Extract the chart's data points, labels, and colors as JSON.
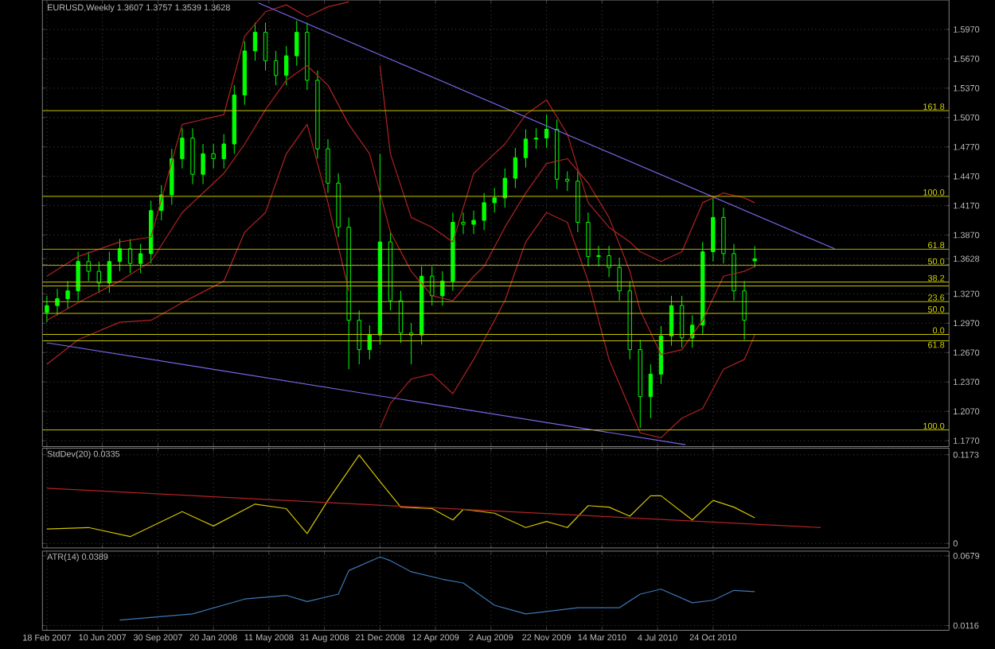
{
  "chart_data": [
    {
      "type": "candlestick",
      "title": "EURUSD,Weekly  1.3607 1.3757 1.3539 1.3628",
      "xlim": [
        "2007-02-09",
        "2012-02-12"
      ],
      "xticks": [
        {
          "value": "2007-02-18",
          "label": null
        },
        {
          "value": "2007-06-10",
          "label": null
        },
        {
          "value": "2007-09-30",
          "label": null
        },
        {
          "value": "2008-01-20",
          "label": null
        },
        {
          "value": "2008-05-11",
          "label": null
        },
        {
          "value": "2008-08-31",
          "label": null
        },
        {
          "value": "2008-12-21",
          "label": null
        },
        {
          "value": "2009-04-12",
          "label": null
        },
        {
          "value": "2009-08-02",
          "label": null
        },
        {
          "value": "2009-11-22",
          "label": null
        },
        {
          "value": "2010-03-14",
          "label": null
        },
        {
          "value": "2010-07-04",
          "label": null
        },
        {
          "value": "2010-10-24",
          "label": null
        }
      ],
      "ylim": [
        1.171,
        1.627
      ],
      "yticks": [
        {
          "value": 1.177,
          "label": "1.1770"
        },
        {
          "value": 1.207,
          "label": "1.2070"
        },
        {
          "value": 1.237,
          "label": "1.2370"
        },
        {
          "value": 1.267,
          "label": "1.2670"
        },
        {
          "value": 1.297,
          "label": "1.2970"
        },
        {
          "value": 1.327,
          "label": "1.3270"
        },
        {
          "value": 1.357,
          "label": null
        },
        {
          "value": 1.3628,
          "label": "1.3628"
        },
        {
          "value": 1.387,
          "label": "1.3870"
        },
        {
          "value": 1.417,
          "label": "1.4170"
        },
        {
          "value": 1.447,
          "label": "1.4470"
        },
        {
          "value": 1.477,
          "label": "1.4770"
        },
        {
          "value": 1.507,
          "label": "1.5070"
        },
        {
          "value": 1.537,
          "label": "1.5370"
        },
        {
          "value": 1.567,
          "label": "1.5670"
        },
        {
          "value": 1.597,
          "label": "1.5970"
        }
      ],
      "grid": true,
      "tick_labels": "y",
      "series": [
        {
          "type": "candlestick",
          "color": "#00ff00",
          "x": [
            "2007-02-18",
            "2007-03-11",
            "2007-04-01",
            "2007-04-22",
            "2007-05-13",
            "2007-06-03",
            "2007-06-24",
            "2007-07-15",
            "2007-08-05",
            "2007-08-26",
            "2007-09-16",
            "2007-10-07",
            "2007-10-28",
            "2007-11-18",
            "2007-12-09",
            "2007-12-30",
            "2008-01-20",
            "2008-02-10",
            "2008-03-02",
            "2008-03-23",
            "2008-04-13",
            "2008-05-04",
            "2008-05-25",
            "2008-06-15",
            "2008-07-06",
            "2008-07-27",
            "2008-08-17",
            "2008-09-07",
            "2008-09-28",
            "2008-10-19",
            "2008-11-09",
            "2008-11-30",
            "2008-12-21",
            "2009-01-11",
            "2009-02-01",
            "2009-02-22",
            "2009-03-15",
            "2009-04-05",
            "2009-04-26",
            "2009-05-17",
            "2009-06-07",
            "2009-06-28",
            "2009-07-19",
            "2009-08-09",
            "2009-08-30",
            "2009-09-20",
            "2009-10-11",
            "2009-11-01",
            "2009-11-22",
            "2009-12-13",
            "2010-01-03",
            "2010-01-24",
            "2010-02-14",
            "2010-03-07",
            "2010-03-28",
            "2010-04-18",
            "2010-05-09",
            "2010-05-30",
            "2010-06-20",
            "2010-07-11",
            "2010-08-01",
            "2010-08-22",
            "2010-09-12",
            "2010-10-03",
            "2010-10-24",
            "2010-11-14",
            "2010-12-05",
            "2010-12-26",
            "2011-01-16"
          ],
          "ohlc": [
            [
              1.308,
              1.325,
              1.298,
              1.315
            ],
            [
              1.315,
              1.332,
              1.305,
              1.322
            ],
            [
              1.322,
              1.34,
              1.312,
              1.33
            ],
            [
              1.33,
              1.37,
              1.32,
              1.36
            ],
            [
              1.36,
              1.37,
              1.34,
              1.35
            ],
            [
              1.35,
              1.36,
              1.328,
              1.338
            ],
            [
              1.338,
              1.37,
              1.328,
              1.36
            ],
            [
              1.36,
              1.383,
              1.35,
              1.373
            ],
            [
              1.373,
              1.383,
              1.348,
              1.358
            ],
            [
              1.358,
              1.378,
              1.348,
              1.368
            ],
            [
              1.368,
              1.422,
              1.358,
              1.412
            ],
            [
              1.412,
              1.438,
              1.402,
              1.428
            ],
            [
              1.428,
              1.475,
              1.418,
              1.465
            ],
            [
              1.465,
              1.496,
              1.455,
              1.486
            ],
            [
              1.486,
              1.496,
              1.439,
              1.449
            ],
            [
              1.449,
              1.48,
              1.439,
              1.47
            ],
            [
              1.47,
              1.48,
              1.455,
              1.465
            ],
            [
              1.465,
              1.49,
              1.455,
              1.48
            ],
            [
              1.48,
              1.54,
              1.47,
              1.53
            ],
            [
              1.53,
              1.585,
              1.52,
              1.575
            ],
            [
              1.575,
              1.604,
              1.565,
              1.594
            ],
            [
              1.594,
              1.604,
              1.555,
              1.565
            ],
            [
              1.565,
              1.575,
              1.54,
              1.55
            ],
            [
              1.55,
              1.58,
              1.54,
              1.57
            ],
            [
              1.57,
              1.606,
              1.56,
              1.594
            ],
            [
              1.594,
              1.604,
              1.535,
              1.545
            ],
            [
              1.545,
              1.555,
              1.465,
              1.475
            ],
            [
              1.475,
              1.485,
              1.43,
              1.44
            ],
            [
              1.44,
              1.45,
              1.385,
              1.395
            ],
            [
              1.395,
              1.405,
              1.25,
              1.3
            ],
            [
              1.3,
              1.31,
              1.255,
              1.27
            ],
            [
              1.27,
              1.295,
              1.26,
              1.285
            ],
            [
              1.285,
              1.47,
              1.275,
              1.38
            ],
            [
              1.38,
              1.39,
              1.31,
              1.32
            ],
            [
              1.32,
              1.33,
              1.277,
              1.287
            ],
            [
              1.287,
              1.297,
              1.255,
              1.285
            ],
            [
              1.285,
              1.355,
              1.275,
              1.345
            ],
            [
              1.345,
              1.355,
              1.315,
              1.325
            ],
            [
              1.325,
              1.35,
              1.315,
              1.34
            ],
            [
              1.34,
              1.41,
              1.33,
              1.4
            ],
            [
              1.4,
              1.41,
              1.388,
              1.398
            ],
            [
              1.398,
              1.412,
              1.388,
              1.402
            ],
            [
              1.402,
              1.43,
              1.392,
              1.42
            ],
            [
              1.42,
              1.435,
              1.41,
              1.425
            ],
            [
              1.425,
              1.455,
              1.415,
              1.445
            ],
            [
              1.445,
              1.476,
              1.435,
              1.466
            ],
            [
              1.466,
              1.495,
              1.456,
              1.485
            ],
            [
              1.485,
              1.496,
              1.475,
              1.486
            ],
            [
              1.486,
              1.51,
              1.476,
              1.495
            ],
            [
              1.495,
              1.505,
              1.434,
              1.444
            ],
            [
              1.444,
              1.452,
              1.432,
              1.442
            ],
            [
              1.442,
              1.452,
              1.39,
              1.4
            ],
            [
              1.4,
              1.41,
              1.355,
              1.365
            ],
            [
              1.365,
              1.376,
              1.355,
              1.366
            ],
            [
              1.366,
              1.376,
              1.344,
              1.354
            ],
            [
              1.354,
              1.364,
              1.32,
              1.33
            ],
            [
              1.33,
              1.34,
              1.26,
              1.27
            ],
            [
              1.27,
              1.28,
              1.19,
              1.222
            ],
            [
              1.222,
              1.255,
              1.2,
              1.245
            ],
            [
              1.245,
              1.294,
              1.235,
              1.284
            ],
            [
              1.284,
              1.325,
              1.274,
              1.315
            ],
            [
              1.315,
              1.325,
              1.272,
              1.282
            ],
            [
              1.282,
              1.305,
              1.272,
              1.295
            ],
            [
              1.295,
              1.38,
              1.285,
              1.37
            ],
            [
              1.37,
              1.425,
              1.36,
              1.405
            ],
            [
              1.405,
              1.415,
              1.358,
              1.368
            ],
            [
              1.368,
              1.378,
              1.32,
              1.33
            ],
            [
              1.33,
              1.34,
              1.28,
              1.3
            ],
            [
              1.3607,
              1.3757,
              1.3539,
              1.3628
            ]
          ]
        },
        {
          "type": "line",
          "color": "#b22222",
          "x": [
            "2007-02-18",
            "2007-04-22",
            "2007-07-15",
            "2007-09-16",
            "2007-11-18",
            "2008-02-10",
            "2008-03-23",
            "2008-05-04",
            "2008-06-15",
            "2008-07-27",
            "2008-09-07",
            "2008-10-19",
            "2008-11-30",
            "2008-12-21",
            "2009-01-11",
            "2009-02-22",
            "2009-04-05",
            "2009-05-17",
            "2009-06-28",
            "2009-07-19",
            "2009-08-30",
            "2009-10-11",
            "2009-11-22",
            "2010-01-03",
            "2010-02-14",
            "2010-03-28",
            "2010-05-09",
            "2010-05-30",
            "2010-07-11",
            "2010-08-22",
            "2010-10-03",
            "2010-11-14",
            "2010-12-26",
            "2011-01-16"
          ],
          "values": [
            1.3,
            1.318,
            1.34,
            1.36,
            1.41,
            1.45,
            1.48,
            1.515,
            1.545,
            1.56,
            1.54,
            1.5,
            1.47,
            1.43,
            1.39,
            1.35,
            1.325,
            1.32,
            1.345,
            1.355,
            1.395,
            1.43,
            1.46,
            1.465,
            1.44,
            1.405,
            1.35,
            1.31,
            1.265,
            1.27,
            1.3,
            1.345,
            1.35,
            1.355
          ]
        },
        {
          "type": "line",
          "color": "#b22222",
          "x": [
            "2007-02-18",
            "2007-04-22",
            "2007-07-15",
            "2007-09-16",
            "2007-11-18",
            "2008-02-10",
            "2008-03-23",
            "2008-05-04",
            "2008-06-15",
            "2008-07-27",
            "2008-09-07",
            "2008-10-19",
            "2008-11-30",
            "2008-12-21",
            "2009-01-11",
            "2009-02-22",
            "2009-04-05",
            "2009-05-17",
            "2009-06-28",
            "2009-07-19",
            "2009-08-30",
            "2009-10-11",
            "2009-11-22",
            "2010-01-03",
            "2010-02-14",
            "2010-03-28",
            "2010-05-09",
            "2010-05-30",
            "2010-07-11",
            "2010-08-22",
            "2010-10-03",
            "2010-11-14",
            "2010-12-26",
            "2011-01-16"
          ],
          "values": [
            1.345,
            1.365,
            1.38,
            1.385,
            1.5,
            1.51,
            1.59,
            1.615,
            1.622,
            1.61,
            1.62,
            1.625,
            null,
            1.56,
            1.47,
            1.405,
            1.395,
            1.38,
            1.45,
            1.46,
            1.48,
            1.51,
            1.525,
            1.49,
            1.42,
            1.395,
            1.38,
            1.37,
            1.36,
            1.37,
            1.42,
            1.43,
            1.425,
            1.42
          ]
        },
        {
          "type": "line",
          "color": "#b22222",
          "x": [
            "2007-02-18",
            "2007-04-22",
            "2007-07-15",
            "2007-09-16",
            "2007-11-18",
            "2008-02-10",
            "2008-03-23",
            "2008-05-04",
            "2008-06-15",
            "2008-07-27",
            "2008-09-07",
            "2008-10-19",
            "2008-11-30",
            "2008-12-21",
            "2009-01-11",
            "2009-02-22",
            "2009-04-05",
            "2009-05-17",
            "2009-06-28",
            "2009-07-19",
            "2009-08-30",
            "2009-10-11",
            "2009-11-22",
            "2010-01-03",
            "2010-02-14",
            "2010-03-28",
            "2010-05-09",
            "2010-05-30",
            "2010-07-11",
            "2010-08-22",
            "2010-10-03",
            "2010-11-14",
            "2010-12-26",
            "2011-01-16"
          ],
          "values": [
            1.255,
            1.28,
            1.298,
            1.3,
            1.318,
            1.34,
            1.39,
            1.41,
            1.47,
            1.5,
            1.42,
            1.33,
            null,
            1.19,
            1.215,
            1.24,
            1.245,
            1.225,
            1.26,
            1.28,
            1.32,
            1.38,
            1.41,
            1.4,
            1.34,
            1.26,
            1.21,
            1.185,
            1.18,
            1.2,
            1.21,
            1.25,
            1.26,
            1.285
          ]
        },
        {
          "type": "line",
          "color": "#7b68ee",
          "x": [
            "2008-04-20",
            "2011-06-26"
          ],
          "values": [
            1.624,
            1.373
          ]
        },
        {
          "type": "line",
          "color": "#7b68ee",
          "x": [
            "2007-02-18",
            "2010-08-29"
          ],
          "values": [
            1.277,
            1.173
          ]
        }
      ],
      "ref_lines": [
        {
          "axis": "y",
          "value": 1.514,
          "color": "#c8c800"
        },
        {
          "axis": "y",
          "value": 1.4265,
          "color": "#c8c800"
        },
        {
          "axis": "y",
          "value": 1.3726,
          "color": "#c8c800"
        },
        {
          "axis": "y",
          "value": 1.356,
          "color": "#c8c800"
        },
        {
          "axis": "y",
          "value": 1.339,
          "color": "#c8c800"
        },
        {
          "axis": "y",
          "value": 1.335,
          "color": "#c8c800"
        },
        {
          "axis": "y",
          "value": 1.319,
          "color": "#c8c800"
        },
        {
          "axis": "y",
          "value": 1.307,
          "color": "#c8c800"
        },
        {
          "axis": "y",
          "value": 1.2855,
          "color": "#c8c800"
        },
        {
          "axis": "y",
          "value": 1.279,
          "color": "#c8c800"
        },
        {
          "axis": "y",
          "value": 1.188,
          "color": "#c8c800"
        }
      ],
      "annotations": [
        {
          "text": "161.8",
          "x": "2012-02-05",
          "y": 1.514
        },
        {
          "text": "100.0",
          "x": "2012-02-05",
          "y": 1.4265
        },
        {
          "text": "61.8",
          "x": "2012-02-05",
          "y": 1.3726
        },
        {
          "text": "50.0",
          "x": "2012-02-05",
          "y": 1.356
        },
        {
          "text": "38.2",
          "x": "2012-02-05",
          "y": 1.339
        },
        {
          "text": "23.6",
          "x": "2012-02-05",
          "y": 1.319
        },
        {
          "text": "50.0",
          "x": "2012-02-05",
          "y": 1.307
        },
        {
          "text": "0.0",
          "x": "2012-02-05",
          "y": 1.2855
        },
        {
          "text": "61.8",
          "x": "2012-02-05",
          "y": 1.279
        },
        {
          "text": "100.0",
          "x": "2012-02-05",
          "y": 1.188
        }
      ]
    },
    {
      "type": "line",
      "title": "StdDev(20) 0.0335",
      "xlim": [
        "2007-02-09",
        "2012-02-12"
      ],
      "xticks": [
        {
          "value": "2007-02-18",
          "label": null
        },
        {
          "value": "2007-06-10",
          "label": null
        },
        {
          "value": "2007-09-30",
          "label": null
        },
        {
          "value": "2008-01-20",
          "label": null
        },
        {
          "value": "2008-05-11",
          "label": null
        },
        {
          "value": "2008-08-31",
          "label": null
        },
        {
          "value": "2008-12-21",
          "label": null
        },
        {
          "value": "2009-04-12",
          "label": null
        },
        {
          "value": "2009-08-02",
          "label": null
        },
        {
          "value": "2009-11-22",
          "label": null
        },
        {
          "value": "2010-03-14",
          "label": null
        },
        {
          "value": "2010-07-04",
          "label": null
        },
        {
          "value": "2010-10-24",
          "label": null
        }
      ],
      "ylim": [
        -0.006,
        0.126
      ],
      "yticks": [
        0,
        0.1173
      ],
      "grid": true,
      "tick_labels": "y",
      "series": [
        {
          "color": "#d4c400",
          "x": [
            "2007-02-18",
            "2007-05-13",
            "2007-08-05",
            "2007-11-18",
            "2008-01-20",
            "2008-04-13",
            "2008-06-15",
            "2008-07-27",
            "2008-09-07",
            "2008-11-09",
            "2008-12-21",
            "2009-02-01",
            "2009-04-05",
            "2009-05-17",
            "2009-06-07",
            "2009-08-09",
            "2009-10-11",
            "2009-11-22",
            "2010-01-03",
            "2010-02-14",
            "2010-03-28",
            "2010-05-09",
            "2010-06-20",
            "2010-07-11",
            "2010-09-12",
            "2010-10-24",
            "2010-12-05",
            "2011-01-16"
          ],
          "values": [
            0.019,
            0.021,
            0.009,
            0.042,
            0.023,
            0.052,
            0.046,
            0.013,
            0.057,
            0.117,
            0.082,
            0.048,
            0.046,
            0.031,
            0.045,
            0.04,
            0.021,
            0.029,
            0.021,
            0.05,
            0.048,
            0.036,
            0.063,
            0.063,
            0.031,
            0.057,
            0.048,
            0.034
          ]
        },
        {
          "color": "#b22222",
          "x": [
            "2007-02-18",
            "2011-05-29"
          ],
          "values": [
            0.073,
            0.021
          ]
        }
      ]
    },
    {
      "type": "line",
      "title": "ATR(14) 0.0389",
      "xlim": [
        "2007-02-09",
        "2012-02-12"
      ],
      "xticks": [
        {
          "value": "2007-02-18",
          "label": "18 Feb 2007"
        },
        {
          "value": "2007-06-10",
          "label": "10 Jun 2007"
        },
        {
          "value": "2007-09-30",
          "label": "30 Sep 2007"
        },
        {
          "value": "2008-01-20",
          "label": "20 Jan 2008"
        },
        {
          "value": "2008-05-11",
          "label": "11 May 2008"
        },
        {
          "value": "2008-08-31",
          "label": "31 Aug 2008"
        },
        {
          "value": "2008-12-21",
          "label": "21 Dec 2008"
        },
        {
          "value": "2009-04-12",
          "label": "12 Apr 2009"
        },
        {
          "value": "2009-08-02",
          "label": "2 Aug 2009"
        },
        {
          "value": "2009-11-22",
          "label": "22 Nov 2009"
        },
        {
          "value": "2010-03-14",
          "label": "14 Mar 2010"
        },
        {
          "value": "2010-07-04",
          "label": "4 Jul 2010"
        },
        {
          "value": "2010-10-24",
          "label": "24 Oct 2010"
        }
      ],
      "ylim": [
        0.0078,
        0.0717
      ],
      "yticks": [
        0.0116,
        0.0679
      ],
      "grid": true,
      "series": [
        {
          "color": "#3c78b4",
          "x": [
            "2007-07-15",
            "2007-12-09",
            "2008-03-23",
            "2008-06-15",
            "2008-07-27",
            "2008-09-28",
            "2008-10-19",
            "2008-12-21",
            "2009-01-11",
            "2009-02-22",
            "2009-04-26",
            "2009-06-07",
            "2009-08-09",
            "2009-10-11",
            "2009-11-22",
            "2010-01-24",
            "2010-04-18",
            "2010-05-30",
            "2010-07-11",
            "2010-09-12",
            "2010-10-24",
            "2010-12-05",
            "2011-01-16"
          ],
          "values": [
            0.016,
            0.021,
            0.033,
            0.036,
            0.031,
            0.037,
            0.056,
            0.067,
            0.064,
            0.055,
            0.049,
            0.046,
            0.028,
            0.021,
            0.023,
            0.026,
            0.026,
            0.037,
            0.041,
            0.03,
            0.032,
            0.04,
            0.039
          ]
        }
      ]
    }
  ]
}
